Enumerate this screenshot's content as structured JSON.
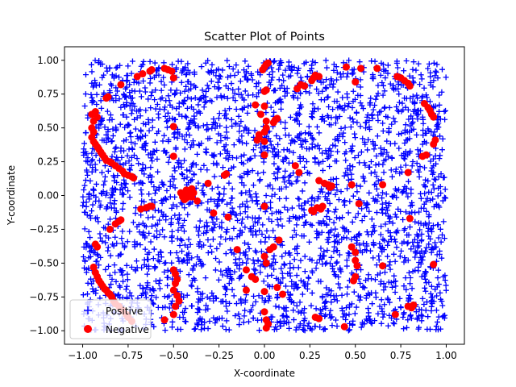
{
  "chart_data": {
    "type": "scatter",
    "title": "Scatter Plot of Points",
    "xlabel": "X-coordinate",
    "ylabel": "Y-coordinate",
    "xlim": [
      -1.1,
      1.1
    ],
    "ylim": [
      -1.1,
      1.1
    ],
    "xticks": [
      -1.0,
      -0.75,
      -0.5,
      -0.25,
      0.0,
      0.25,
      0.5,
      0.75,
      1.0
    ],
    "xtick_labels": [
      "−1.00",
      "−0.75",
      "−0.50",
      "−0.25",
      "0.00",
      "0.25",
      "0.50",
      "0.75",
      "1.00"
    ],
    "yticks": [
      -1.0,
      -0.75,
      -0.5,
      -0.25,
      0.0,
      0.25,
      0.5,
      0.75,
      1.0
    ],
    "ytick_labels": [
      "−1.00",
      "−0.75",
      "−0.50",
      "−0.25",
      "0.00",
      "0.25",
      "0.50",
      "0.75",
      "1.00"
    ],
    "grid": false,
    "legend_location": "lower left",
    "series": [
      {
        "name": "Positive",
        "marker": "plus",
        "color": "#0000ff",
        "count_estimate": 3000,
        "distribution": "uniform random over the square x in [-1, 1], y in [-1, 1]"
      },
      {
        "name": "Negative",
        "marker": "circle",
        "color": "#ff0000",
        "points": [
          [
            -0.95,
            0.6
          ],
          [
            -0.93,
            0.62
          ],
          [
            -0.92,
            0.58
          ],
          [
            -0.94,
            0.55
          ],
          [
            -0.95,
            0.5
          ],
          [
            -0.94,
            0.47
          ],
          [
            -0.95,
            0.43
          ],
          [
            -0.94,
            0.4
          ],
          [
            -0.93,
            0.38
          ],
          [
            -0.92,
            0.36
          ],
          [
            -0.91,
            0.34
          ],
          [
            -0.9,
            0.32
          ],
          [
            -0.89,
            0.3
          ],
          [
            -0.88,
            0.28
          ],
          [
            -0.87,
            0.26
          ],
          [
            -0.85,
            0.25
          ],
          [
            -0.84,
            0.24
          ],
          [
            -0.82,
            0.22
          ],
          [
            -0.8,
            0.2
          ],
          [
            -0.78,
            0.18
          ],
          [
            -0.77,
            0.16
          ],
          [
            -0.75,
            0.15
          ],
          [
            -0.73,
            0.14
          ],
          [
            -0.72,
            0.13
          ],
          [
            -0.87,
            0.72
          ],
          [
            -0.86,
            0.73
          ],
          [
            -0.79,
            0.82
          ],
          [
            -0.7,
            0.88
          ],
          [
            -0.67,
            0.9
          ],
          [
            -0.63,
            0.92
          ],
          [
            -0.62,
            0.93
          ],
          [
            -0.55,
            0.94
          ],
          [
            -0.53,
            0.93
          ],
          [
            -0.51,
            0.92
          ],
          [
            -0.5,
            0.87
          ],
          [
            -0.5,
            0.51
          ],
          [
            -0.5,
            0.29
          ],
          [
            -0.68,
            -0.1
          ],
          [
            -0.65,
            -0.09
          ],
          [
            -0.63,
            -0.08
          ],
          [
            -0.62,
            -0.08
          ],
          [
            -0.79,
            -0.18
          ],
          [
            -0.8,
            -0.19
          ],
          [
            -0.82,
            -0.21
          ],
          [
            -0.85,
            -0.25
          ],
          [
            -0.93,
            -0.36
          ],
          [
            -0.92,
            -0.38
          ],
          [
            -0.94,
            -0.53
          ],
          [
            -0.93,
            -0.57
          ],
          [
            -0.92,
            -0.6
          ],
          [
            -0.91,
            -0.63
          ],
          [
            -0.9,
            -0.65
          ],
          [
            -0.89,
            -0.67
          ],
          [
            -0.88,
            -0.69
          ],
          [
            -0.87,
            -0.7
          ],
          [
            -0.86,
            -0.72
          ],
          [
            -0.85,
            -0.73
          ],
          [
            -0.84,
            -0.75
          ],
          [
            -0.83,
            -0.78
          ],
          [
            -0.82,
            -0.8
          ],
          [
            -0.8,
            -0.82
          ],
          [
            -0.78,
            -0.85
          ],
          [
            -0.76,
            -0.88
          ],
          [
            -0.75,
            -0.9
          ],
          [
            -0.73,
            -0.93
          ],
          [
            -0.5,
            -0.55
          ],
          [
            -0.49,
            -0.58
          ],
          [
            -0.48,
            -0.62
          ],
          [
            -0.49,
            -0.65
          ],
          [
            -0.5,
            -0.7
          ],
          [
            -0.48,
            -0.74
          ],
          [
            -0.47,
            -0.78
          ],
          [
            -0.49,
            -0.82
          ],
          [
            -0.5,
            -0.88
          ],
          [
            -0.55,
            -0.92
          ],
          [
            -0.46,
            0.02
          ],
          [
            -0.45,
            -0.01
          ],
          [
            -0.44,
            0.0
          ],
          [
            -0.43,
            -0.02
          ],
          [
            -0.42,
            0.01
          ],
          [
            -0.41,
            0.03
          ],
          [
            -0.4,
            -0.01
          ],
          [
            -0.43,
            0.04
          ],
          [
            -0.44,
            -0.03
          ],
          [
            -0.4,
            0.05
          ],
          [
            -0.39,
            0.02
          ],
          [
            -0.37,
            -0.04
          ],
          [
            -0.31,
            0.09
          ],
          [
            -0.28,
            -0.13
          ],
          [
            -0.22,
            0.15
          ],
          [
            -0.21,
            0.16
          ],
          [
            -0.2,
            -0.16
          ],
          [
            -0.15,
            -0.4
          ],
          [
            -0.1,
            -0.55
          ],
          [
            -0.1,
            -0.7
          ],
          [
            -0.07,
            -0.6
          ],
          [
            -0.05,
            0.67
          ],
          [
            -0.05,
            -0.62
          ],
          [
            -0.02,
            0.6
          ],
          [
            -0.03,
            0.45
          ],
          [
            -0.03,
            0.43
          ],
          [
            -0.04,
            0.41
          ],
          [
            0.0,
            0.95
          ],
          [
            0.01,
            0.97
          ],
          [
            0.02,
            0.98
          ],
          [
            -0.01,
            0.93
          ],
          [
            0.0,
            0.77
          ],
          [
            0.01,
            0.78
          ],
          [
            0.0,
            0.66
          ],
          [
            0.01,
            0.55
          ],
          [
            0.01,
            0.5
          ],
          [
            0.0,
            0.47
          ],
          [
            0.0,
            0.4
          ],
          [
            0.0,
            0.3
          ],
          [
            0.0,
            -0.08
          ],
          [
            0.05,
            0.54
          ],
          [
            0.06,
            0.56
          ],
          [
            0.07,
            0.57
          ],
          [
            0.03,
            -0.4
          ],
          [
            0.0,
            -0.45
          ],
          [
            0.01,
            -0.5
          ],
          [
            0.05,
            -0.38
          ],
          [
            0.08,
            -0.33
          ],
          [
            0.0,
            -0.71
          ],
          [
            0.07,
            -0.68
          ],
          [
            0.1,
            -0.73
          ],
          [
            0.0,
            -0.86
          ],
          [
            0.01,
            -0.92
          ],
          [
            0.02,
            -0.95
          ],
          [
            0.01,
            -0.98
          ],
          [
            0.18,
            0.79
          ],
          [
            0.2,
            0.82
          ],
          [
            0.22,
            0.81
          ],
          [
            0.26,
            0.85
          ],
          [
            0.27,
            0.87
          ],
          [
            0.28,
            0.89
          ],
          [
            0.3,
            0.88
          ],
          [
            0.17,
            0.22
          ],
          [
            0.19,
            0.17
          ],
          [
            0.3,
            0.11
          ],
          [
            0.33,
            0.09
          ],
          [
            0.35,
            0.08
          ],
          [
            0.37,
            0.07
          ],
          [
            0.36,
            0.06
          ],
          [
            0.29,
            -0.09
          ],
          [
            0.32,
            -0.08
          ],
          [
            0.31,
            -0.1
          ],
          [
            0.26,
            -0.11
          ],
          [
            0.27,
            -0.12
          ],
          [
            0.28,
            -0.9
          ],
          [
            0.3,
            -0.91
          ],
          [
            0.45,
            0.95
          ],
          [
            0.5,
            0.84
          ],
          [
            0.53,
            0.94
          ],
          [
            0.48,
            0.08
          ],
          [
            0.52,
            -0.06
          ],
          [
            0.48,
            -0.38
          ],
          [
            0.5,
            -0.42
          ],
          [
            0.5,
            -0.48
          ],
          [
            0.51,
            -0.52
          ],
          [
            0.5,
            -0.6
          ],
          [
            0.49,
            -0.63
          ],
          [
            0.44,
            -0.97
          ],
          [
            0.62,
            0.94
          ],
          [
            0.65,
            0.08
          ],
          [
            0.65,
            -0.52
          ],
          [
            0.72,
            -0.88
          ],
          [
            0.73,
            0.88
          ],
          [
            0.75,
            0.87
          ],
          [
            0.77,
            0.85
          ],
          [
            0.79,
            0.83
          ],
          [
            0.8,
            0.81
          ],
          [
            0.79,
            0.17
          ],
          [
            0.8,
            -0.17
          ],
          [
            0.79,
            -0.82
          ],
          [
            0.81,
            -0.83
          ],
          [
            0.82,
            -0.81
          ],
          [
            0.88,
            0.68
          ],
          [
            0.9,
            0.65
          ],
          [
            0.91,
            0.63
          ],
          [
            0.92,
            0.6
          ],
          [
            0.93,
            0.58
          ],
          [
            0.87,
            0.29
          ],
          [
            0.89,
            0.3
          ],
          [
            0.93,
            0.38
          ],
          [
            0.94,
            0.41
          ],
          [
            0.93,
            -0.51
          ]
        ]
      }
    ]
  }
}
